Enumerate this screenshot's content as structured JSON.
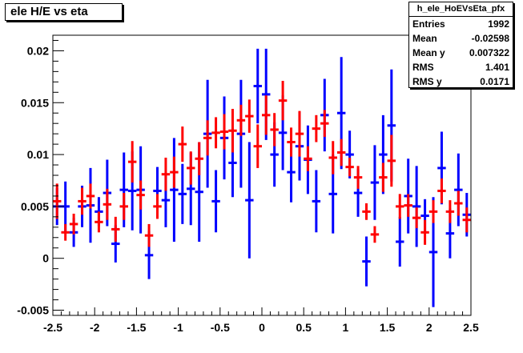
{
  "title": "ele H/E vs eta",
  "stats": {
    "name": "h_ele_HoEVsEta_pfx",
    "rows": [
      {
        "label": "Entries",
        "value": "1992"
      },
      {
        "label": "Mean",
        "value": "-0.02598"
      },
      {
        "label": "Mean y",
        "value": "0.007322"
      },
      {
        "label": "RMS",
        "value": "1.401"
      },
      {
        "label": "RMS y",
        "value": "0.0171"
      }
    ]
  },
  "colors": {
    "blue": "#0000ff",
    "red": "#ff0000",
    "axis": "#000000"
  },
  "chart_data": {
    "type": "scatter",
    "title": "ele H/E vs eta",
    "xlim": [
      -2.5,
      2.5
    ],
    "ylim": [
      -0.0055,
      0.0215
    ],
    "xticks": [
      -2.5,
      -2,
      -1.5,
      -1,
      -0.5,
      0,
      0.5,
      1,
      1.5,
      2,
      2.5
    ],
    "xticklabels": [
      "-2.5",
      "-2",
      "-1.5",
      "-1",
      "-0.5",
      "0",
      "0.5",
      "1",
      "1.5",
      "2",
      "2.5"
    ],
    "yticks": [
      -0.005,
      0,
      0.005,
      0.01,
      0.015,
      0.02
    ],
    "yticklabels": [
      "-0.005",
      "0",
      "0.005",
      "0.01",
      "0.015",
      "0.02"
    ],
    "grid": false,
    "series": [
      {
        "color": "blue",
        "points": [
          {
            "x": -2.45,
            "y": 0.005,
            "err": 0.0018
          },
          {
            "x": -2.35,
            "y": 0.005,
            "err": 0.0024
          },
          {
            "x": -2.25,
            "y": 0.0025,
            "err": 0.0014
          },
          {
            "x": -2.15,
            "y": 0.005,
            "err": 0.002
          },
          {
            "x": -2.05,
            "y": 0.0051,
            "err": 0.0036
          },
          {
            "x": -1.95,
            "y": 0.0045,
            "err": 0.0014
          },
          {
            "x": -1.85,
            "y": 0.0063,
            "err": 0.0032
          },
          {
            "x": -1.75,
            "y": 0.0014,
            "err": 0.0018
          },
          {
            "x": -1.65,
            "y": 0.0066,
            "err": 0.0036
          },
          {
            "x": -1.55,
            "y": 0.0065,
            "err": 0.0038
          },
          {
            "x": -1.45,
            "y": 0.0066,
            "err": 0.0042
          },
          {
            "x": -1.35,
            "y": 0.0003,
            "err": 0.0023
          },
          {
            "x": -1.25,
            "y": 0.0065,
            "err": 0.0023
          },
          {
            "x": -1.15,
            "y": 0.0056,
            "err": 0.0026
          },
          {
            "x": -1.05,
            "y": 0.0066,
            "err": 0.005
          },
          {
            "x": -0.95,
            "y": 0.0062,
            "err": 0.0029
          },
          {
            "x": -0.85,
            "y": 0.0067,
            "err": 0.0035
          },
          {
            "x": -0.75,
            "y": 0.0064,
            "err": 0.0048
          },
          {
            "x": -0.65,
            "y": 0.012,
            "err": 0.0052
          },
          {
            "x": -0.55,
            "y": 0.0055,
            "err": 0.003
          },
          {
            "x": -0.45,
            "y": 0.0116,
            "err": 0.004
          },
          {
            "x": -0.35,
            "y": 0.0092,
            "err": 0.0033
          },
          {
            "x": -0.25,
            "y": 0.012,
            "err": 0.0052
          },
          {
            "x": -0.15,
            "y": 0.0056,
            "err": 0.0056
          },
          {
            "x": -0.05,
            "y": 0.0166,
            "err": 0.0036
          },
          {
            "x": 0.05,
            "y": 0.0158,
            "err": 0.0044
          },
          {
            "x": 0.15,
            "y": 0.01,
            "err": 0.0031
          },
          {
            "x": 0.25,
            "y": 0.0121,
            "err": 0.0036
          },
          {
            "x": 0.35,
            "y": 0.0083,
            "err": 0.0029
          },
          {
            "x": 0.45,
            "y": 0.0108,
            "err": 0.0033
          },
          {
            "x": 0.55,
            "y": 0.0095,
            "err": 0.0033
          },
          {
            "x": 0.65,
            "y": 0.0055,
            "err": 0.003
          },
          {
            "x": 0.75,
            "y": 0.0138,
            "err": 0.0035
          },
          {
            "x": 0.85,
            "y": 0.0062,
            "err": 0.0038
          },
          {
            "x": 0.95,
            "y": 0.014,
            "err": 0.0054
          },
          {
            "x": 1.05,
            "y": 0.01,
            "err": 0.0023
          },
          {
            "x": 1.15,
            "y": 0.0063,
            "err": 0.0023
          },
          {
            "x": 1.25,
            "y": -0.0003,
            "err": 0.0024
          },
          {
            "x": 1.35,
            "y": 0.0073,
            "err": 0.0036
          },
          {
            "x": 1.45,
            "y": 0.01,
            "err": 0.0038
          },
          {
            "x": 1.55,
            "y": 0.0128,
            "err": 0.0054
          },
          {
            "x": 1.65,
            "y": 0.0016,
            "err": 0.0024
          },
          {
            "x": 1.75,
            "y": 0.006,
            "err": 0.0036
          },
          {
            "x": 1.85,
            "y": 0.005,
            "err": 0.0039
          },
          {
            "x": 1.95,
            "y": 0.0041,
            "err": 0.0016
          },
          {
            "x": 2.05,
            "y": 0.0006,
            "err": 0.0053
          },
          {
            "x": 2.15,
            "y": 0.0087,
            "err": 0.0035
          },
          {
            "x": 2.25,
            "y": 0.0024,
            "err": 0.0024
          },
          {
            "x": 2.35,
            "y": 0.0066,
            "err": 0.0035
          },
          {
            "x": 2.45,
            "y": 0.0042,
            "err": 0.0021
          }
        ]
      },
      {
        "color": "red",
        "points": [
          {
            "x": -2.45,
            "y": 0.0055,
            "err": 0.0017
          },
          {
            "x": -2.35,
            "y": 0.0025,
            "err": 0.0008
          },
          {
            "x": -2.25,
            "y": 0.0033,
            "err": 0.001
          },
          {
            "x": -2.15,
            "y": 0.0055,
            "err": 0.0013
          },
          {
            "x": -2.05,
            "y": 0.006,
            "err": 0.0012
          },
          {
            "x": -1.95,
            "y": 0.0035,
            "err": 0.001
          },
          {
            "x": -1.85,
            "y": 0.0052,
            "err": 0.0015
          },
          {
            "x": -1.75,
            "y": 0.0028,
            "err": 0.0012
          },
          {
            "x": -1.65,
            "y": 0.005,
            "err": 0.0013
          },
          {
            "x": -1.55,
            "y": 0.0093,
            "err": 0.002
          },
          {
            "x": -1.45,
            "y": 0.0061,
            "err": 0.0014
          },
          {
            "x": -1.35,
            "y": 0.0022,
            "err": 0.0011
          },
          {
            "x": -1.25,
            "y": 0.005,
            "err": 0.0012
          },
          {
            "x": -1.15,
            "y": 0.0081,
            "err": 0.0016
          },
          {
            "x": -1.05,
            "y": 0.0083,
            "err": 0.0015
          },
          {
            "x": -0.95,
            "y": 0.011,
            "err": 0.0017
          },
          {
            "x": -0.85,
            "y": 0.0087,
            "err": 0.0016
          },
          {
            "x": -0.75,
            "y": 0.0096,
            "err": 0.0016
          },
          {
            "x": -0.65,
            "y": 0.0116,
            "err": 0.0017
          },
          {
            "x": -0.55,
            "y": 0.0121,
            "err": 0.0015
          },
          {
            "x": -0.45,
            "y": 0.0122,
            "err": 0.0017
          },
          {
            "x": -0.35,
            "y": 0.0123,
            "err": 0.0021
          },
          {
            "x": -0.25,
            "y": 0.0133,
            "err": 0.0015
          },
          {
            "x": -0.15,
            "y": 0.0137,
            "err": 0.0016
          },
          {
            "x": -0.05,
            "y": 0.0108,
            "err": 0.0021
          },
          {
            "x": 0.05,
            "y": 0.0138,
            "err": 0.0019
          },
          {
            "x": 0.15,
            "y": 0.0124,
            "err": 0.0016
          },
          {
            "x": 0.25,
            "y": 0.0152,
            "err": 0.0019
          },
          {
            "x": 0.35,
            "y": 0.0112,
            "err": 0.0014
          },
          {
            "x": 0.45,
            "y": 0.012,
            "err": 0.0022
          },
          {
            "x": 0.55,
            "y": 0.0096,
            "err": 0.0012
          },
          {
            "x": 0.65,
            "y": 0.0125,
            "err": 0.0013
          },
          {
            "x": 0.75,
            "y": 0.013,
            "err": 0.0013
          },
          {
            "x": 0.85,
            "y": 0.0097,
            "err": 0.0016
          },
          {
            "x": 0.95,
            "y": 0.0102,
            "err": 0.0013
          },
          {
            "x": 1.05,
            "y": 0.0088,
            "err": 0.0009
          },
          {
            "x": 1.15,
            "y": 0.0078,
            "err": 0.0011
          },
          {
            "x": 1.25,
            "y": 0.0045,
            "err": 0.0008
          },
          {
            "x": 1.35,
            "y": 0.0023,
            "err": 0.0008
          },
          {
            "x": 1.45,
            "y": 0.0078,
            "err": 0.0014
          },
          {
            "x": 1.55,
            "y": 0.0094,
            "err": 0.0025
          },
          {
            "x": 1.65,
            "y": 0.005,
            "err": 0.0012
          },
          {
            "x": 1.75,
            "y": 0.0051,
            "err": 0.0011
          },
          {
            "x": 1.85,
            "y": 0.0039,
            "err": 0.001
          },
          {
            "x": 1.95,
            "y": 0.0025,
            "err": 0.0012
          },
          {
            "x": 2.05,
            "y": 0.0045,
            "err": 0.0011
          },
          {
            "x": 2.15,
            "y": 0.0065,
            "err": 0.0012
          },
          {
            "x": 2.25,
            "y": 0.0045,
            "err": 0.0011
          },
          {
            "x": 2.35,
            "y": 0.0053,
            "err": 0.0012
          },
          {
            "x": 2.45,
            "y": 0.0037,
            "err": 0.0012
          }
        ]
      }
    ]
  }
}
